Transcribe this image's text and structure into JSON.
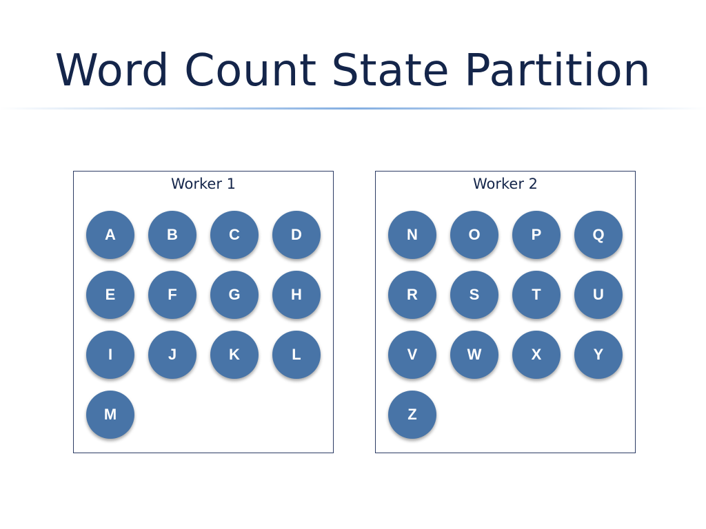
{
  "slide": {
    "title": "Word Count State Partition"
  },
  "workers": [
    {
      "label": "Worker 1",
      "keys": [
        "A",
        "B",
        "C",
        "D",
        "E",
        "F",
        "G",
        "H",
        "I",
        "J",
        "K",
        "L",
        "M"
      ]
    },
    {
      "label": "Worker 2",
      "keys": [
        "N",
        "O",
        "P",
        "Q",
        "R",
        "S",
        "T",
        "U",
        "V",
        "W",
        "X",
        "Y",
        "Z"
      ]
    }
  ],
  "colors": {
    "node_fill": "#4874a7",
    "title_text": "#14254a",
    "box_border": "#2b3a63"
  }
}
